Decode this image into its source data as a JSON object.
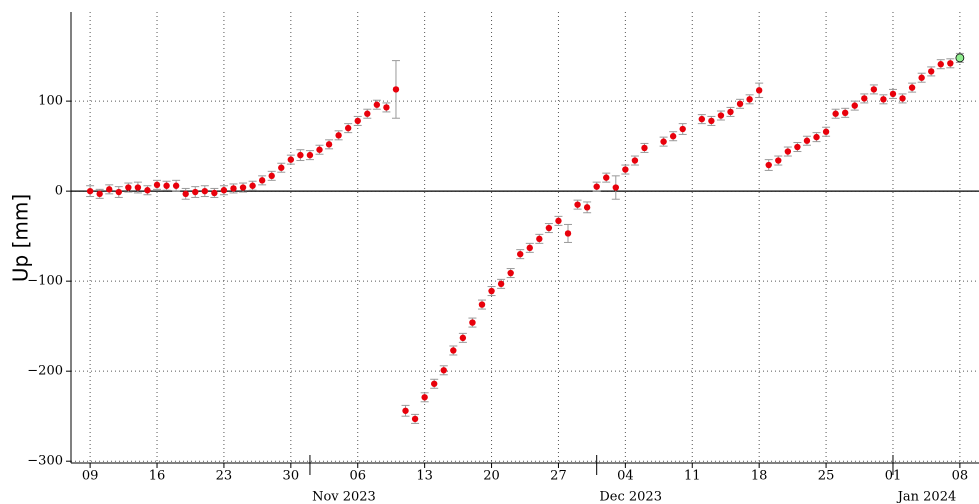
{
  "chart_data": {
    "type": "errorbar-scatter",
    "y_label": "Up [mm]",
    "x": [
      "2023-10-09",
      "2023-10-10",
      "2023-10-11",
      "2023-10-12",
      "2023-10-13",
      "2023-10-14",
      "2023-10-15",
      "2023-10-16",
      "2023-10-17",
      "2023-10-18",
      "2023-10-19",
      "2023-10-20",
      "2023-10-21",
      "2023-10-22",
      "2023-10-23",
      "2023-10-24",
      "2023-10-25",
      "2023-10-26",
      "2023-10-27",
      "2023-10-28",
      "2023-10-29",
      "2023-10-30",
      "2023-10-31",
      "2023-11-01",
      "2023-11-02",
      "2023-11-03",
      "2023-11-04",
      "2023-11-05",
      "2023-11-06",
      "2023-11-07",
      "2023-11-08",
      "2023-11-09",
      "2023-11-10",
      "2023-11-11",
      "2023-11-12",
      "2023-11-13",
      "2023-11-14",
      "2023-11-15",
      "2023-11-16",
      "2023-11-17",
      "2023-11-18",
      "2023-11-19",
      "2023-11-20",
      "2023-11-21",
      "2023-11-22",
      "2023-11-23",
      "2023-11-24",
      "2023-11-25",
      "2023-11-26",
      "2023-11-27",
      "2023-11-28",
      "2023-11-29",
      "2023-11-30",
      "2023-12-01",
      "2023-12-02",
      "2023-12-03",
      "2023-12-04",
      "2023-12-05",
      "2023-12-06",
      "2023-12-08",
      "2023-12-09",
      "2023-12-10",
      "2023-12-12",
      "2023-12-13",
      "2023-12-14",
      "2023-12-15",
      "2023-12-16",
      "2023-12-17",
      "2023-12-18",
      "2023-12-19",
      "2023-12-20",
      "2023-12-21",
      "2023-12-22",
      "2023-12-23",
      "2023-12-24",
      "2023-12-25",
      "2023-12-26",
      "2023-12-27",
      "2023-12-28",
      "2023-12-29",
      "2023-12-30",
      "2023-12-31",
      "2024-01-01",
      "2024-01-02",
      "2024-01-03",
      "2024-01-04",
      "2024-01-05",
      "2024-01-06",
      "2024-01-07",
      "2024-01-08"
    ],
    "values": [
      0,
      -3,
      2,
      -1,
      4,
      4,
      1,
      7,
      6,
      6,
      -3,
      -1,
      0,
      -2,
      1,
      3,
      4,
      6,
      12,
      17,
      26,
      35,
      40,
      40,
      46,
      52,
      62,
      70,
      78,
      86,
      96,
      93,
      113,
      -244,
      -253,
      -229,
      -214,
      -199,
      -177,
      -163,
      -146,
      -126,
      -111,
      -103,
      -91,
      -70,
      -63,
      -53,
      -41,
      -33,
      -47,
      -15,
      -18,
      5,
      15,
      4,
      24,
      34,
      48,
      55,
      61,
      69,
      80,
      78,
      84,
      88,
      97,
      102,
      112,
      29,
      34,
      44,
      49,
      56,
      60,
      66,
      86,
      87,
      95,
      103,
      113,
      102,
      108,
      103,
      115,
      126,
      133,
      141,
      142,
      148
    ],
    "errors": [
      6,
      5,
      5,
      6,
      5,
      6,
      5,
      5,
      5,
      6,
      6,
      6,
      6,
      5,
      5,
      5,
      5,
      5,
      5,
      5,
      5,
      5,
      6,
      5,
      5,
      5,
      5,
      5,
      5,
      5,
      5,
      5,
      32,
      6,
      5,
      5,
      5,
      5,
      5,
      5,
      5,
      5,
      5,
      5,
      5,
      5,
      5,
      5,
      5,
      5,
      10,
      5,
      6,
      5,
      5,
      13,
      5,
      5,
      5,
      5,
      5,
      6,
      5,
      5,
      5,
      5,
      5,
      5,
      8,
      6,
      5,
      5,
      5,
      5,
      5,
      5,
      5,
      5,
      5,
      5,
      5,
      5,
      5,
      5,
      5,
      5,
      5,
      5,
      5,
      5
    ],
    "color": "#e8000b",
    "error_color": "#999999",
    "last_point_color": "#90ee90",
    "xlim": [
      "2023-10-07",
      "2024-01-10"
    ],
    "xticks": [
      {
        "value": "2023-10-09",
        "label": "09"
      },
      {
        "value": "2023-10-16",
        "label": "16"
      },
      {
        "value": "2023-10-23",
        "label": "23"
      },
      {
        "value": "2023-10-30",
        "label": "30"
      },
      {
        "value": "2023-11-06",
        "label": "06"
      },
      {
        "value": "2023-11-13",
        "label": "13"
      },
      {
        "value": "2023-11-20",
        "label": "20"
      },
      {
        "value": "2023-11-27",
        "label": "27"
      },
      {
        "value": "2023-12-04",
        "label": "04"
      },
      {
        "value": "2023-12-11",
        "label": "11"
      },
      {
        "value": "2023-12-18",
        "label": "18"
      },
      {
        "value": "2023-12-25",
        "label": "25"
      },
      {
        "value": "2024-01-01",
        "label": "01"
      },
      {
        "value": "2024-01-08",
        "label": "08"
      }
    ],
    "month_ticks": [
      {
        "value": "2023-11-01",
        "label": "Nov 2023"
      },
      {
        "value": "2023-12-01",
        "label": "Dec 2023"
      },
      {
        "value": "2024-01-01",
        "label": "Jan 2024"
      }
    ],
    "ylim": [
      -302,
      199
    ],
    "yticks": [
      {
        "value": -300,
        "label": "−300"
      },
      {
        "value": -200,
        "label": "−200"
      },
      {
        "value": -100,
        "label": "−100"
      },
      0,
      100
    ],
    "grid": true,
    "zero_line": true
  }
}
